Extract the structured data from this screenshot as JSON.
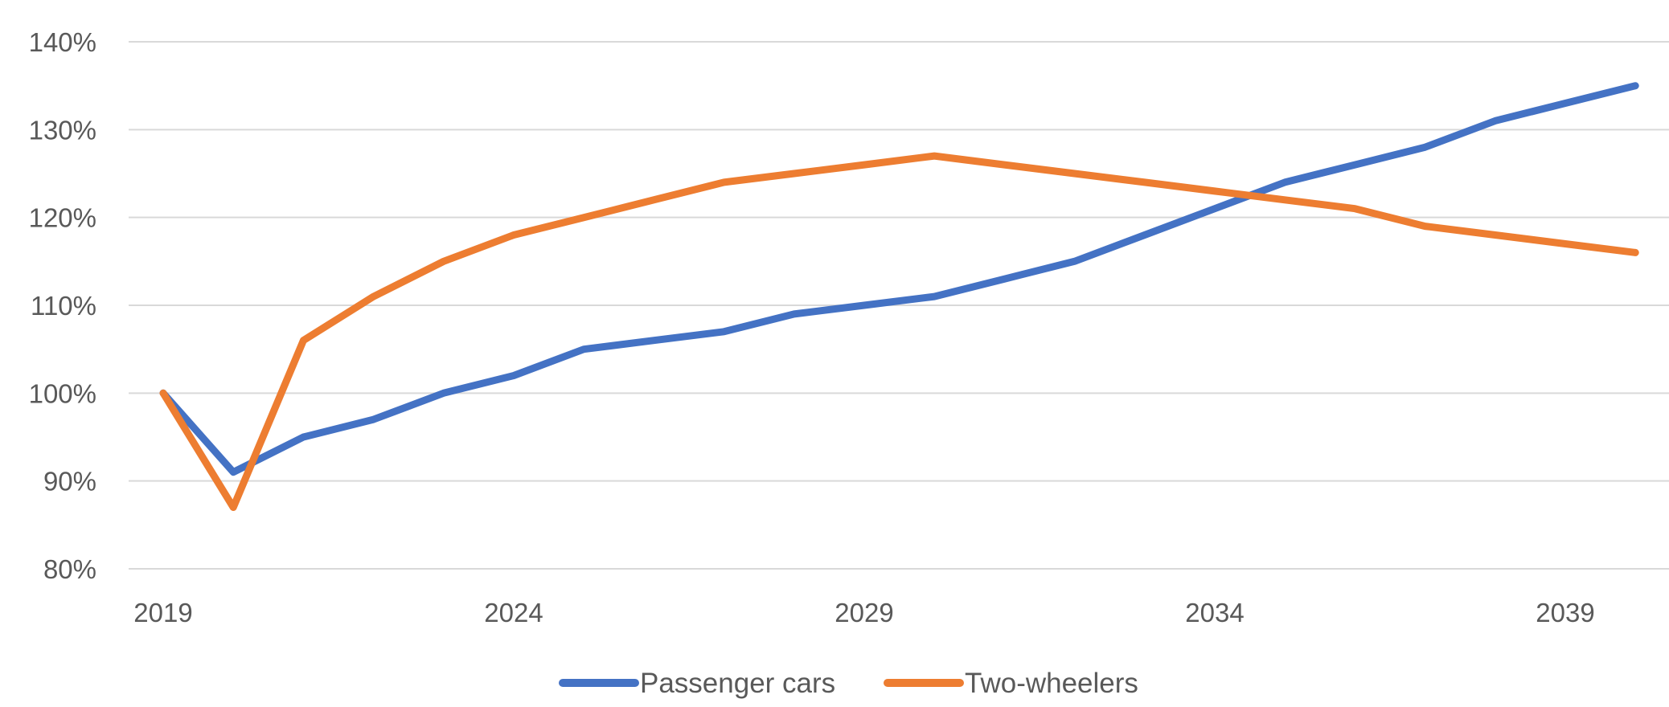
{
  "chart_data": {
    "type": "line",
    "title": "",
    "xlabel": "",
    "ylabel": "",
    "x": [
      2019,
      2020,
      2021,
      2022,
      2023,
      2024,
      2025,
      2026,
      2027,
      2028,
      2029,
      2030,
      2031,
      2032,
      2033,
      2034,
      2035,
      2036,
      2037,
      2038,
      2039,
      2040
    ],
    "x_ticks": [
      "2019",
      "2024",
      "2029",
      "2034",
      "2039"
    ],
    "y_ticks": [
      "80%",
      "90%",
      "100%",
      "110%",
      "120%",
      "130%",
      "140%"
    ],
    "ylim": [
      80,
      140
    ],
    "grid": true,
    "legend_position": "bottom",
    "series": [
      {
        "name": "Passenger cars",
        "color": "#4472C4",
        "values": [
          100,
          91,
          95,
          97,
          100,
          102,
          105,
          106,
          107,
          109,
          110,
          111,
          113,
          115,
          118,
          121,
          124,
          126,
          128,
          131,
          133,
          135
        ]
      },
      {
        "name": "Two-wheelers",
        "color": "#ED7D31",
        "values": [
          100,
          87,
          106,
          111,
          115,
          118,
          120,
          122,
          124,
          125,
          126,
          127,
          126,
          125,
          124,
          123,
          122,
          121,
          119,
          118,
          117,
          116
        ]
      }
    ]
  }
}
